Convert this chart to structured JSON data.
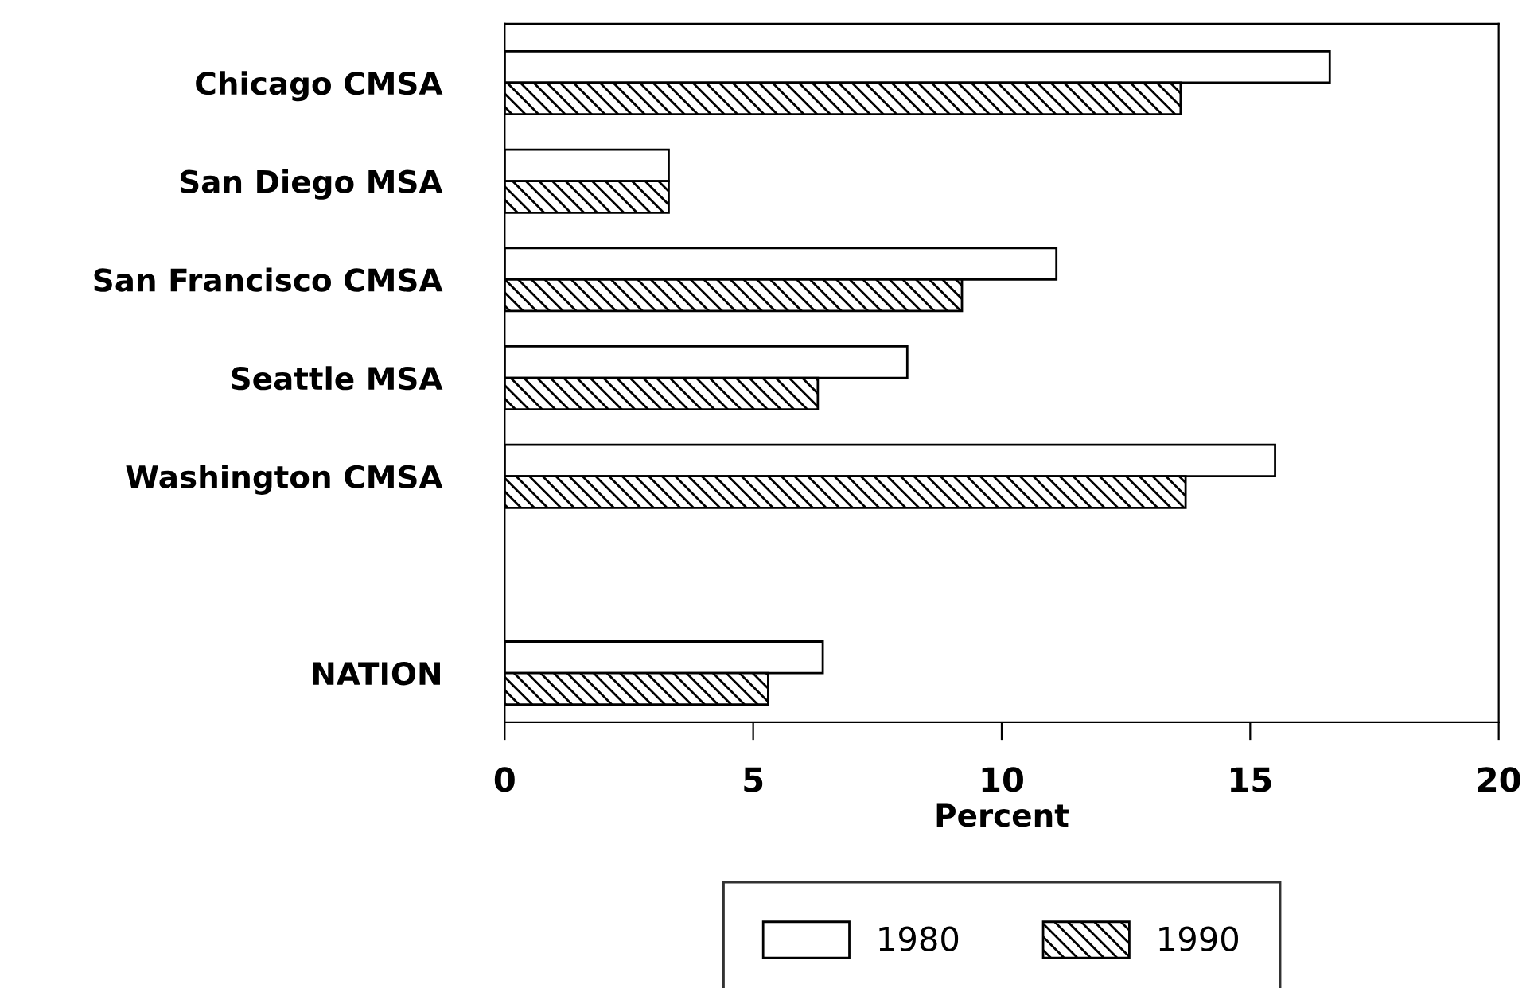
{
  "chart_data": {
    "type": "bar",
    "orientation": "horizontal",
    "xlabel": "Percent",
    "categories": [
      "Chicago CMSA",
      "San Diego MSA",
      "San Francisco CMSA",
      "Seattle MSA",
      "Washington CMSA",
      null,
      "NATION"
    ],
    "series": [
      {
        "name": "1980",
        "color": "#ffffff",
        "values": [
          16.6,
          3.3,
          11.1,
          8.1,
          15.5,
          null,
          6.4
        ]
      },
      {
        "name": "1990",
        "color": "#000000",
        "values": [
          13.6,
          3.3,
          9.2,
          6.3,
          13.7,
          null,
          5.3
        ]
      }
    ],
    "xlim": [
      0,
      20
    ],
    "xticks": [
      0,
      5,
      10,
      15,
      20
    ],
    "grid": false,
    "legend": "bottom"
  }
}
